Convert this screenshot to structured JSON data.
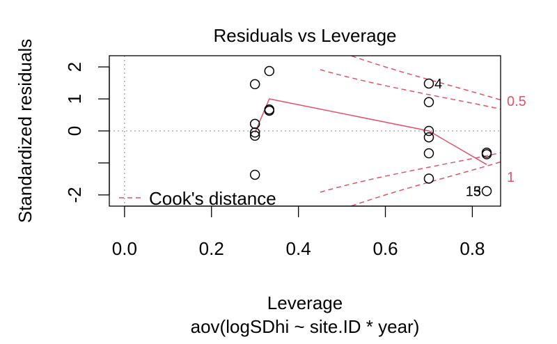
{
  "chart_data": {
    "type": "scatter",
    "title": "Residuals vs Leverage",
    "xlabel": "Leverage",
    "subtitle": "aov(logSDhi ~ site.ID * year)",
    "ylabel": "Standardized residuals",
    "xlim": [
      -0.035,
      0.865
    ],
    "ylim": [
      -2.35,
      2.35
    ],
    "x_ticks": [
      0.0,
      0.2,
      0.4,
      0.6,
      0.8
    ],
    "x_tick_labels": [
      "0.0",
      "0.2",
      "0.4",
      "0.6",
      "0.8"
    ],
    "y_ticks": [
      -2,
      -1,
      0,
      1,
      2
    ],
    "y_tick_labels": [
      "-2",
      "",
      "0",
      "1",
      "2"
    ],
    "points": [
      {
        "x": 0.3,
        "y": 1.46
      },
      {
        "x": 0.3,
        "y": 0.22
      },
      {
        "x": 0.3,
        "y": -0.05
      },
      {
        "x": 0.3,
        "y": -0.15
      },
      {
        "x": 0.3,
        "y": -1.37
      },
      {
        "x": 0.333,
        "y": 1.87
      },
      {
        "x": 0.333,
        "y": 0.67
      },
      {
        "x": 0.333,
        "y": 0.63
      },
      {
        "x": 0.7,
        "y": 1.48
      },
      {
        "x": 0.7,
        "y": 0.9
      },
      {
        "x": 0.7,
        "y": 0.0
      },
      {
        "x": 0.7,
        "y": -0.2
      },
      {
        "x": 0.7,
        "y": -0.7
      },
      {
        "x": 0.7,
        "y": -1.49
      },
      {
        "x": 0.833,
        "y": -0.68
      },
      {
        "x": 0.833,
        "y": -0.73
      },
      {
        "x": 0.833,
        "y": -1.88
      }
    ],
    "point_labels": [
      {
        "text": "4",
        "x": 0.7,
        "y": 1.48
      },
      {
        "text": "15",
        "x": 0.833,
        "y": -1.88
      },
      {
        "text": "3",
        "x": 0.833,
        "y": -1.88
      }
    ],
    "smooth_line": {
      "x": [
        0.3,
        0.333,
        0.7,
        0.833
      ],
      "y": [
        -0.05,
        1.0,
        0.0,
        -1.05
      ]
    },
    "cooks_contours": [
      {
        "level": 0.5,
        "label": "0.5"
      },
      {
        "level": 1,
        "label": "1"
      }
    ],
    "num_params": 6,
    "legend": {
      "label": "Cook's distance",
      "position": "bottom-left"
    },
    "reference_lines": {
      "x": 0,
      "y": 0
    },
    "colors": {
      "points": "#000000",
      "smooth": "#DF536B",
      "cook": "#DF536B",
      "reference": "#a0a0a0",
      "axis": "#000000"
    }
  }
}
